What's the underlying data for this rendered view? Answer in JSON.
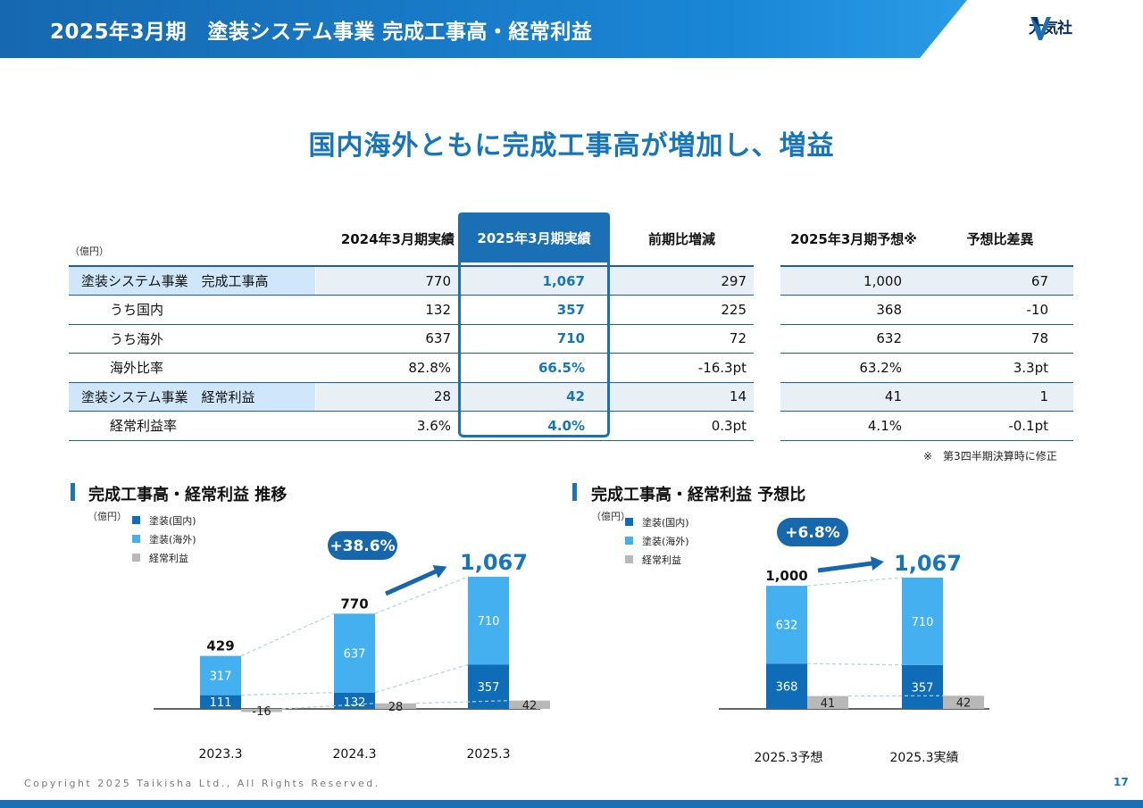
{
  "header": {
    "title": "2025年3月期　塗装システム事業 完成工事高・経常利益",
    "logo_text": "大気社"
  },
  "headline": "国内海外ともに完成工事高が増加し、増益",
  "table": {
    "unit": "（億円）",
    "main_headers": [
      "2024年3月期実績",
      "2025年3月期実績",
      "前期比増減"
    ],
    "right_headers": [
      "2025年3月期予想※",
      "予想比差異"
    ],
    "rows": [
      {
        "label": "塗装システム事業　完成工事高",
        "prev": "770",
        "curr": "1,067",
        "diff": "297",
        "forecast": "1,000",
        "fdiff": "67"
      },
      {
        "label": "うち国内",
        "prev": "132",
        "curr": "357",
        "diff": "225",
        "forecast": "368",
        "fdiff": "-10"
      },
      {
        "label": "うち海外",
        "prev": "637",
        "curr": "710",
        "diff": "72",
        "forecast": "632",
        "fdiff": "78"
      },
      {
        "label": "海外比率",
        "prev": "82.8%",
        "curr": "66.5%",
        "diff": "-16.3pt",
        "forecast": "63.2%",
        "fdiff": "3.3pt"
      },
      {
        "label": "塗装システム事業　経常利益",
        "prev": "28",
        "curr": "42",
        "diff": "14",
        "forecast": "41",
        "fdiff": "1"
      },
      {
        "label": "経常利益率",
        "prev": "3.6%",
        "curr": "4.0%",
        "diff": "0.3pt",
        "forecast": "4.1%",
        "fdiff": "-0.1pt"
      }
    ],
    "note": "※　第3四半期決算時に修正"
  },
  "legend": {
    "domestic": "塗装(国内)",
    "overseas": "塗装(海外)",
    "profit": "経常利益"
  },
  "colors": {
    "brand": "#1a6fb5",
    "domestic": "#0f6cb6",
    "overseas": "#45b0f0",
    "profit": "#b8b8b8",
    "highlight": "#1775bb"
  },
  "footer": {
    "copyright": "Copyright  2025 Taikisha Ltd., All Rights Reserved.",
    "page": "17"
  },
  "chart_data": [
    {
      "type": "bar",
      "title": "完成工事高・経常利益 推移",
      "unit": "（億円）",
      "categories": [
        "2023.3",
        "2024.3",
        "2025.3"
      ],
      "series": [
        {
          "name": "塗装(国内)",
          "values": [
            111,
            132,
            357
          ]
        },
        {
          "name": "塗装(海外)",
          "values": [
            317,
            637,
            710
          ]
        },
        {
          "name": "経常利益",
          "values": [
            -16,
            28,
            42
          ]
        }
      ],
      "totals": [
        "429",
        "770",
        "1,067"
      ],
      "growth_label": "+38.6%"
    },
    {
      "type": "bar",
      "title": "完成工事高・経常利益 予想比",
      "unit": "（億円）",
      "categories": [
        "2025.3予想",
        "2025.3実績"
      ],
      "series": [
        {
          "name": "塗装(国内)",
          "values": [
            368,
            357
          ]
        },
        {
          "name": "塗装(海外)",
          "values": [
            632,
            710
          ]
        },
        {
          "name": "経常利益",
          "values": [
            41,
            42
          ]
        }
      ],
      "totals": [
        "1,000",
        "1,067"
      ],
      "growth_label": "+6.8%"
    }
  ]
}
